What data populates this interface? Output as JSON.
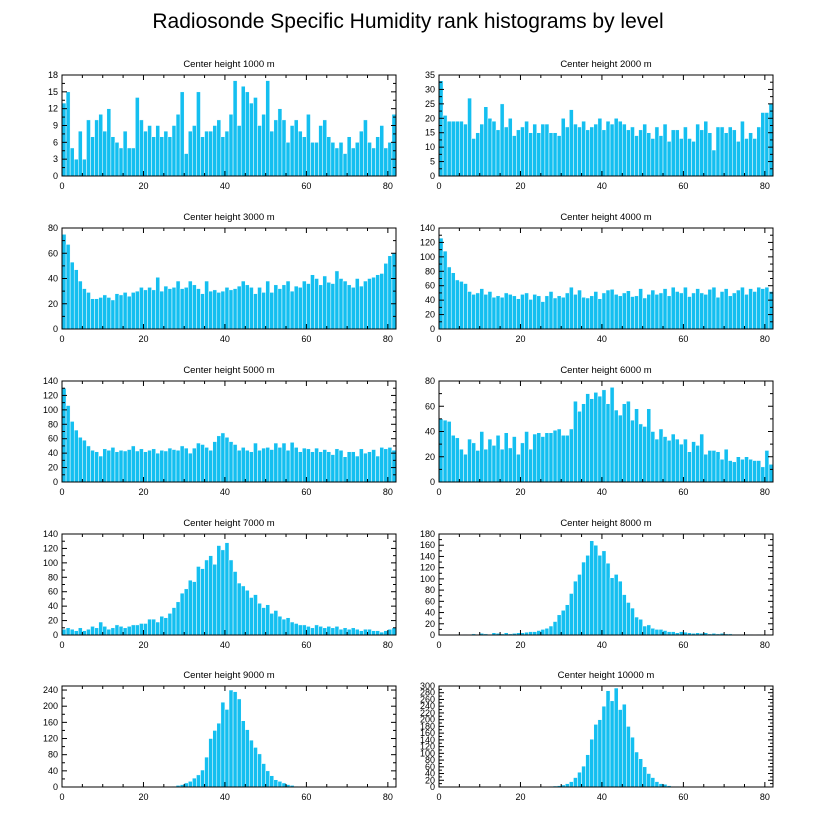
{
  "title": "Radiosonde Specific Humidity rank histograms by level",
  "colors": {
    "bar": "#14bff0",
    "bar_edge": "#ffffff",
    "axis": "#000000"
  },
  "chart_data": [
    {
      "type": "bar",
      "title": "Center height 1000 m",
      "xlabel": "",
      "ylabel": "",
      "xlim": [
        0,
        82
      ],
      "ylim": [
        0,
        18
      ],
      "xticks": [
        0,
        20,
        40,
        60,
        80
      ],
      "yticks": [
        0,
        3,
        6,
        9,
        12,
        15,
        18
      ],
      "values": [
        13,
        15,
        5,
        3,
        8,
        3,
        10,
        7,
        10,
        11,
        8,
        12,
        7,
        6,
        5,
        8,
        5,
        5,
        14,
        10,
        8,
        9,
        7,
        9,
        7,
        8,
        7,
        9,
        11,
        15,
        4,
        8,
        9,
        15,
        7,
        8,
        8,
        9,
        10,
        7,
        8,
        11,
        17,
        9,
        16,
        15,
        13,
        14,
        9,
        11,
        17,
        8,
        10,
        12,
        10,
        6,
        9,
        10,
        8,
        7,
        11,
        6,
        6,
        9,
        10,
        7,
        6,
        5,
        6,
        4,
        7,
        5,
        6,
        8,
        10,
        6,
        5,
        7,
        9,
        5,
        6,
        11
      ]
    },
    {
      "type": "bar",
      "title": "Center height 2000 m",
      "xlabel": "",
      "ylabel": "",
      "xlim": [
        0,
        82
      ],
      "ylim": [
        0,
        35
      ],
      "xticks": [
        0,
        20,
        40,
        60,
        80
      ],
      "yticks": [
        0,
        5,
        10,
        15,
        20,
        25,
        30,
        35
      ],
      "values": [
        33,
        21,
        19,
        19,
        19,
        19,
        18,
        27,
        13,
        15,
        18,
        24,
        20,
        19,
        16,
        25,
        17,
        20,
        14,
        16,
        17,
        19,
        15,
        18,
        15,
        18,
        18,
        15,
        15,
        14,
        20,
        17,
        23,
        18,
        17,
        19,
        16,
        17,
        18,
        20,
        16,
        19,
        18,
        20,
        19,
        18,
        16,
        17,
        14,
        16,
        18,
        15,
        13,
        17,
        14,
        18,
        12,
        16,
        16,
        13,
        17,
        13,
        12,
        18,
        16,
        19,
        15,
        9,
        17,
        17,
        15,
        17,
        16,
        12,
        19,
        13,
        15,
        13,
        17,
        22,
        22,
        25
      ]
    },
    {
      "type": "bar",
      "title": "Center height 3000 m",
      "xlabel": "",
      "ylabel": "",
      "xlim": [
        0,
        82
      ],
      "ylim": [
        0,
        80
      ],
      "xticks": [
        0,
        20,
        40,
        60,
        80
      ],
      "yticks": [
        0,
        20,
        40,
        60,
        80
      ],
      "values": [
        75,
        67,
        53,
        47,
        38,
        32,
        29,
        24,
        24,
        25,
        27,
        25,
        23,
        28,
        27,
        29,
        26,
        29,
        30,
        33,
        31,
        33,
        31,
        41,
        30,
        34,
        32,
        33,
        38,
        32,
        33,
        38,
        35,
        32,
        28,
        38,
        30,
        31,
        29,
        30,
        33,
        31,
        32,
        34,
        38,
        35,
        33,
        28,
        33,
        29,
        38,
        29,
        35,
        32,
        35,
        38,
        30,
        34,
        33,
        38,
        36,
        43,
        40,
        35,
        42,
        37,
        36,
        46,
        40,
        38,
        35,
        33,
        40,
        34,
        38,
        40,
        41,
        43,
        44,
        52,
        58,
        60
      ]
    },
    {
      "type": "bar",
      "title": "Center height 4000 m",
      "xlabel": "",
      "ylabel": "",
      "xlim": [
        0,
        82
      ],
      "ylim": [
        0,
        140
      ],
      "xticks": [
        0,
        20,
        40,
        60,
        80
      ],
      "yticks": [
        0,
        20,
        40,
        60,
        80,
        100,
        120,
        140
      ],
      "values": [
        126,
        108,
        86,
        78,
        68,
        66,
        63,
        52,
        48,
        50,
        56,
        48,
        52,
        44,
        46,
        44,
        50,
        48,
        46,
        42,
        48,
        50,
        41,
        48,
        46,
        38,
        46,
        52,
        43,
        46,
        44,
        50,
        58,
        48,
        54,
        44,
        43,
        46,
        52,
        42,
        50,
        54,
        55,
        48,
        46,
        50,
        53,
        45,
        46,
        56,
        43,
        48,
        54,
        48,
        50,
        56,
        46,
        58,
        52,
        50,
        58,
        45,
        50,
        56,
        50,
        48,
        55,
        58,
        44,
        52,
        56,
        46,
        50,
        54,
        58,
        48,
        56,
        52,
        58,
        56,
        58,
        52
      ]
    },
    {
      "type": "bar",
      "title": "Center height 5000 m",
      "xlabel": "",
      "ylabel": "",
      "xlim": [
        0,
        82
      ],
      "ylim": [
        0,
        140
      ],
      "xticks": [
        0,
        20,
        40,
        60,
        80
      ],
      "yticks": [
        0,
        20,
        40,
        60,
        80,
        100,
        120,
        140
      ],
      "values": [
        130,
        106,
        84,
        72,
        62,
        58,
        50,
        44,
        42,
        36,
        46,
        44,
        48,
        42,
        44,
        43,
        45,
        50,
        43,
        46,
        42,
        44,
        46,
        40,
        44,
        43,
        47,
        45,
        44,
        50,
        47,
        40,
        47,
        54,
        52,
        48,
        44,
        56,
        64,
        68,
        62,
        56,
        52,
        44,
        48,
        44,
        42,
        54,
        44,
        47,
        48,
        45,
        54,
        48,
        54,
        44,
        55,
        48,
        42,
        47,
        46,
        42,
        47,
        42,
        45,
        42,
        38,
        46,
        44,
        35,
        42,
        42,
        36,
        46,
        40,
        42,
        45,
        36,
        48,
        46,
        48,
        44
      ]
    },
    {
      "type": "bar",
      "title": "Center height 6000 m",
      "xlabel": "",
      "ylabel": "",
      "xlim": [
        0,
        82
      ],
      "ylim": [
        0,
        80
      ],
      "xticks": [
        0,
        20,
        40,
        60,
        80
      ],
      "yticks": [
        0,
        20,
        40,
        60,
        80
      ],
      "values": [
        50,
        49,
        48,
        37,
        35,
        26,
        22,
        34,
        31,
        25,
        40,
        26,
        34,
        29,
        37,
        26,
        39,
        27,
        36,
        22,
        31,
        40,
        26,
        38,
        39,
        36,
        39,
        39,
        41,
        42,
        37,
        37,
        42,
        64,
        56,
        62,
        70,
        66,
        71,
        68,
        73,
        62,
        75,
        57,
        53,
        62,
        64,
        49,
        58,
        46,
        44,
        58,
        40,
        34,
        42,
        36,
        33,
        38,
        34,
        30,
        34,
        24,
        32,
        29,
        38,
        22,
        25,
        25,
        24,
        18,
        26,
        17,
        16,
        20,
        18,
        20,
        18,
        17,
        17,
        12,
        25,
        14
      ]
    },
    {
      "type": "bar",
      "title": "Center height 7000 m",
      "xlabel": "",
      "ylabel": "",
      "xlim": [
        0,
        82
      ],
      "ylim": [
        0,
        140
      ],
      "xticks": [
        0,
        20,
        40,
        60,
        80
      ],
      "yticks": [
        0,
        20,
        40,
        60,
        80,
        100,
        120,
        140
      ],
      "values": [
        8,
        10,
        8,
        6,
        10,
        6,
        8,
        12,
        10,
        18,
        12,
        8,
        10,
        14,
        12,
        10,
        12,
        14,
        14,
        16,
        16,
        22,
        22,
        18,
        26,
        24,
        30,
        38,
        46,
        58,
        64,
        76,
        74,
        95,
        92,
        104,
        110,
        98,
        124,
        118,
        128,
        104,
        88,
        72,
        68,
        62,
        52,
        56,
        44,
        38,
        42,
        30,
        34,
        26,
        22,
        24,
        18,
        16,
        14,
        14,
        12,
        10,
        14,
        12,
        10,
        12,
        10,
        12,
        8,
        10,
        8,
        10,
        8,
        6,
        8,
        8,
        6,
        6,
        4,
        6,
        8,
        10
      ]
    },
    {
      "type": "bar",
      "title": "Center height 8000 m",
      "xlabel": "",
      "ylabel": "",
      "xlim": [
        0,
        82
      ],
      "ylim": [
        0,
        180
      ],
      "xticks": [
        0,
        20,
        40,
        60,
        80
      ],
      "yticks": [
        0,
        20,
        40,
        60,
        80,
        100,
        120,
        140,
        160,
        180
      ],
      "values": [
        0,
        0,
        0,
        0,
        1,
        0,
        1,
        0,
        2,
        1,
        3,
        2,
        1,
        4,
        3,
        2,
        4,
        2,
        3,
        4,
        4,
        5,
        6,
        6,
        8,
        10,
        12,
        16,
        24,
        36,
        44,
        54,
        74,
        96,
        108,
        130,
        142,
        168,
        160,
        142,
        150,
        128,
        102,
        108,
        96,
        72,
        58,
        48,
        32,
        28,
        16,
        18,
        12,
        10,
        10,
        8,
        6,
        6,
        4,
        6,
        5,
        4,
        3,
        4,
        3,
        4,
        2,
        3,
        2,
        3,
        2,
        2,
        1,
        1,
        1,
        1,
        1,
        0,
        1,
        0,
        0,
        0
      ]
    },
    {
      "type": "bar",
      "title": "Center height 9000 m",
      "xlabel": "",
      "ylabel": "",
      "xlim": [
        0,
        82
      ],
      "ylim": [
        0,
        250
      ],
      "xticks": [
        0,
        20,
        40,
        60,
        80
      ],
      "yticks": [
        0,
        40,
        80,
        120,
        160,
        200,
        240
      ],
      "values": [
        0,
        0,
        0,
        0,
        0,
        0,
        0,
        0,
        0,
        0,
        0,
        0,
        0,
        0,
        0,
        0,
        0,
        0,
        0,
        0,
        0,
        0,
        0,
        0,
        0,
        1,
        1,
        2,
        4,
        6,
        10,
        14,
        22,
        30,
        42,
        74,
        120,
        140,
        158,
        210,
        192,
        240,
        236,
        218,
        164,
        142,
        116,
        98,
        82,
        58,
        40,
        28,
        18,
        14,
        10,
        6,
        4,
        2,
        1,
        1,
        0,
        0,
        0,
        0,
        0,
        0,
        0,
        0,
        0,
        0,
        0,
        0,
        0,
        0,
        0,
        0,
        0,
        0,
        0,
        0,
        0,
        0
      ]
    },
    {
      "type": "bar",
      "title": "Center height 10000 m",
      "xlabel": "",
      "ylabel": "",
      "xlim": [
        0,
        82
      ],
      "ylim": [
        0,
        300
      ],
      "xticks": [
        0,
        20,
        40,
        60,
        80
      ],
      "yticks": [
        0,
        20,
        40,
        60,
        80,
        100,
        120,
        140,
        160,
        180,
        200,
        220,
        240,
        260,
        280,
        300
      ],
      "values": [
        0,
        0,
        0,
        0,
        0,
        0,
        0,
        0,
        0,
        0,
        0,
        0,
        0,
        0,
        0,
        0,
        0,
        0,
        0,
        0,
        0,
        0,
        0,
        0,
        0,
        1,
        1,
        2,
        3,
        4,
        6,
        10,
        16,
        28,
        44,
        62,
        96,
        142,
        186,
        200,
        240,
        286,
        256,
        294,
        230,
        246,
        180,
        148,
        104,
        84,
        60,
        40,
        28,
        16,
        10,
        8,
        4,
        2,
        2,
        1,
        1,
        1,
        0,
        0,
        0,
        0,
        0,
        0,
        0,
        0,
        0,
        0,
        0,
        0,
        0,
        0,
        0,
        0,
        0,
        0,
        0,
        0
      ]
    }
  ]
}
